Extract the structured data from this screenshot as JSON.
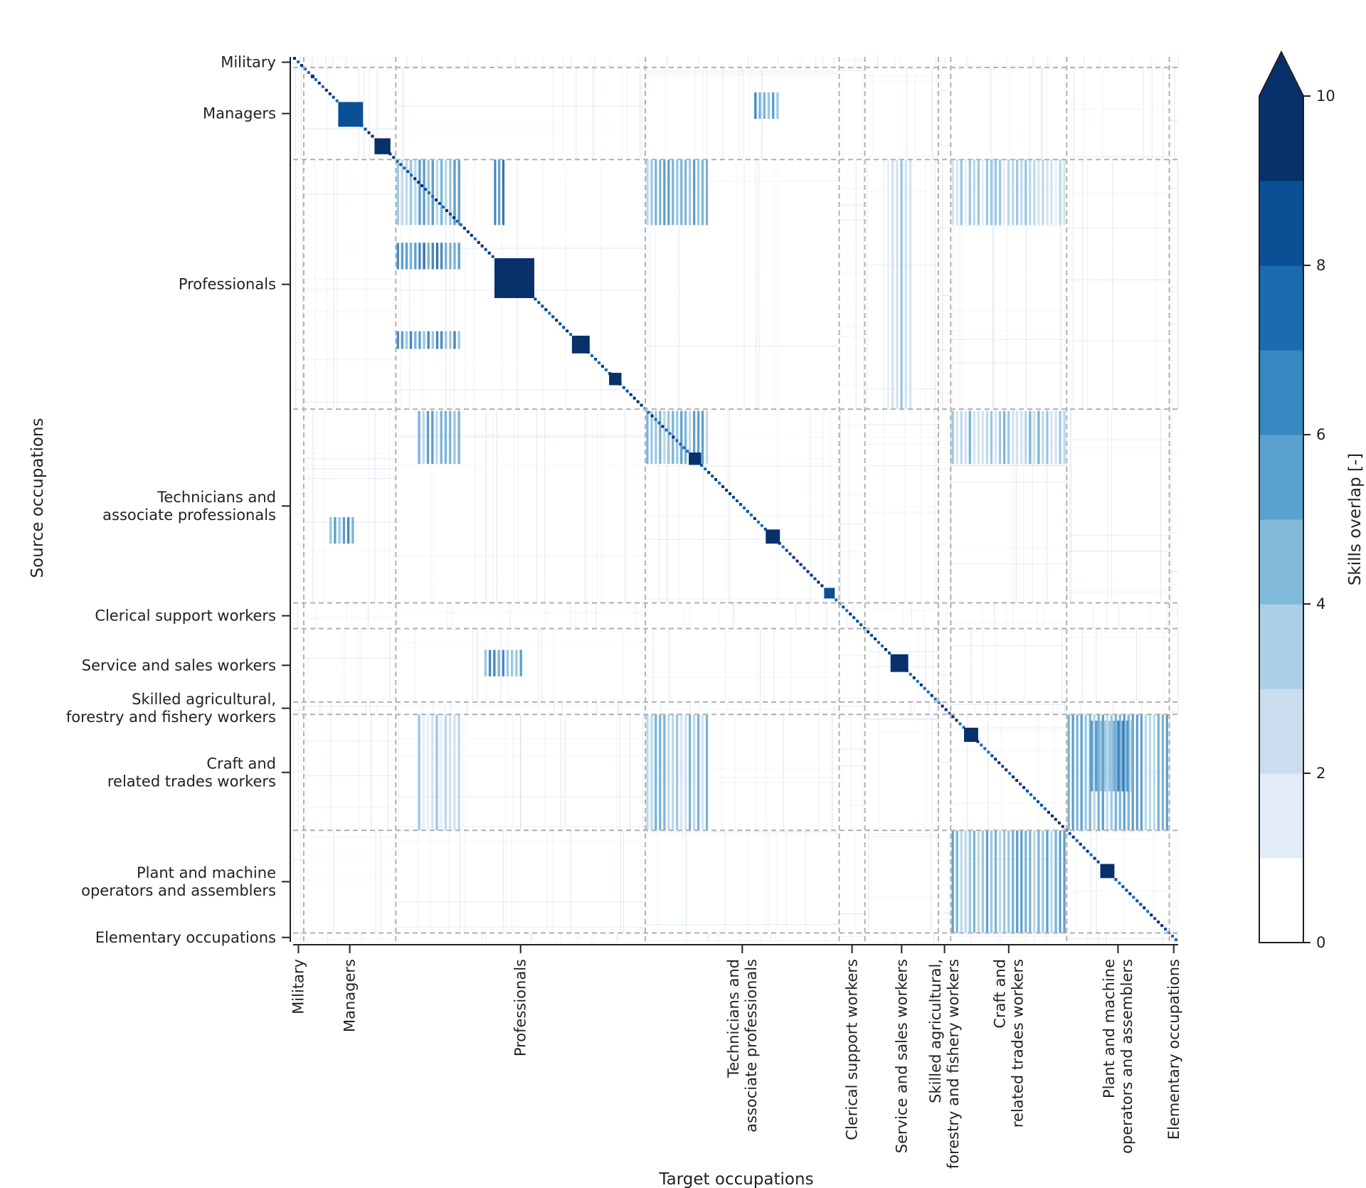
{
  "chart_data": {
    "type": "heatmap",
    "title": "",
    "xlabel": "Target occupations",
    "ylabel": "Source occupations",
    "groups": [
      {
        "name": "Military",
        "lines": [
          "Military"
        ],
        "start": 0,
        "end": 0.012
      },
      {
        "name": "Managers",
        "lines": [
          "Managers"
        ],
        "start": 0.012,
        "end": 0.116
      },
      {
        "name": "Professionals",
        "lines": [
          "Professionals"
        ],
        "start": 0.116,
        "end": 0.398
      },
      {
        "name": "Technicians and associate professionals",
        "lines": [
          "Technicians and",
          "associate professionals"
        ],
        "start": 0.398,
        "end": 0.617
      },
      {
        "name": "Clerical support workers",
        "lines": [
          "Clerical support workers"
        ],
        "start": 0.617,
        "end": 0.646
      },
      {
        "name": "Service and sales workers",
        "lines": [
          "Service and sales workers"
        ],
        "start": 0.646,
        "end": 0.729
      },
      {
        "name": "Skilled agricultural, forestry and fishery workers",
        "lines": [
          "Skilled agricultural,",
          "forestry and fishery workers"
        ],
        "start": 0.729,
        "end": 0.743
      },
      {
        "name": "Craft and related trades workers",
        "lines": [
          "Craft and",
          "related trades workers"
        ],
        "start": 0.743,
        "end": 0.874
      },
      {
        "name": "Plant and machine operators and assemblers",
        "lines": [
          "Plant and machine",
          "operators and assemblers"
        ],
        "start": 0.874,
        "end": 0.99
      },
      {
        "name": "Elementary occupations",
        "lines": [
          "Elementary occupations"
        ],
        "start": 0.99,
        "end": 1.0
      }
    ],
    "diagonal_blocks": [
      {
        "center": 0.022,
        "size": 0.004,
        "value": 9
      },
      {
        "center": 0.065,
        "size": 0.028,
        "value": 8
      },
      {
        "center": 0.101,
        "size": 0.018,
        "value": 10
      },
      {
        "center": 0.25,
        "size": 0.045,
        "value": 10
      },
      {
        "center": 0.325,
        "size": 0.02,
        "value": 9
      },
      {
        "center": 0.364,
        "size": 0.014,
        "value": 10
      },
      {
        "center": 0.454,
        "size": 0.014,
        "value": 9
      },
      {
        "center": 0.542,
        "size": 0.016,
        "value": 10
      },
      {
        "center": 0.606,
        "size": 0.012,
        "value": 8
      },
      {
        "center": 0.685,
        "size": 0.02,
        "value": 10
      },
      {
        "center": 0.766,
        "size": 0.016,
        "value": 10
      },
      {
        "center": 0.92,
        "size": 0.016,
        "value": 10
      }
    ],
    "offdiag_blocks": [
      {
        "x": [
          0.116,
          0.19
        ],
        "y": [
          0.116,
          0.19
        ],
        "value": 5
      },
      {
        "x": [
          0.116,
          0.19
        ],
        "y": [
          0.21,
          0.24
        ],
        "value": 7
      },
      {
        "x": [
          0.116,
          0.19
        ],
        "y": [
          0.31,
          0.33
        ],
        "value": 6
      },
      {
        "x": [
          0.226,
          0.24
        ],
        "y": [
          0.116,
          0.19
        ],
        "value": 8
      },
      {
        "x": [
          0.398,
          0.47
        ],
        "y": [
          0.4,
          0.46
        ],
        "value": 5
      },
      {
        "x": [
          0.398,
          0.47
        ],
        "y": [
          0.116,
          0.19
        ],
        "value": 5
      },
      {
        "x": [
          0.14,
          0.19
        ],
        "y": [
          0.4,
          0.46
        ],
        "value": 5
      },
      {
        "x": [
          0.04,
          0.07
        ],
        "y": [
          0.52,
          0.55
        ],
        "value": 6
      },
      {
        "x": [
          0.52,
          0.55
        ],
        "y": [
          0.04,
          0.07
        ],
        "value": 6
      },
      {
        "x": [
          0.743,
          0.874
        ],
        "y": [
          0.4,
          0.46
        ],
        "value": 4
      },
      {
        "x": [
          0.398,
          0.47
        ],
        "y": [
          0.743,
          0.874
        ],
        "value": 4
      },
      {
        "x": [
          0.743,
          0.874
        ],
        "y": [
          0.116,
          0.19
        ],
        "value": 3
      },
      {
        "x": [
          0.14,
          0.19
        ],
        "y": [
          0.743,
          0.874
        ],
        "value": 3
      },
      {
        "x": [
          0.743,
          0.874
        ],
        "y": [
          0.874,
          0.99
        ],
        "value": 5
      },
      {
        "x": [
          0.874,
          0.99
        ],
        "y": [
          0.743,
          0.874
        ],
        "value": 5
      },
      {
        "x": [
          0.9,
          0.95
        ],
        "y": [
          0.75,
          0.83
        ],
        "value": 6
      },
      {
        "x": [
          0.67,
          0.7
        ],
        "y": [
          0.116,
          0.398
        ],
        "value": 3
      },
      {
        "x": [
          0.215,
          0.26
        ],
        "y": [
          0.67,
          0.7
        ],
        "value": 6
      }
    ],
    "xlim": [
      0,
      1
    ],
    "ylim": [
      0,
      1
    ],
    "colorbar": {
      "label": "Skills overlap [-]",
      "min": 0,
      "max": 10,
      "ticks": [
        0,
        2,
        4,
        6,
        8,
        10
      ],
      "extend": "max",
      "bins": 10,
      "colors": [
        "#ffffff",
        "#e2ecf7",
        "#cadcee",
        "#abcfe6",
        "#82badb",
        "#59a1cf",
        "#3787c0",
        "#1c6aaf",
        "#0b4f94",
        "#08306b"
      ]
    },
    "grid": "dashed group boundaries",
    "legend": "colorbar right"
  }
}
